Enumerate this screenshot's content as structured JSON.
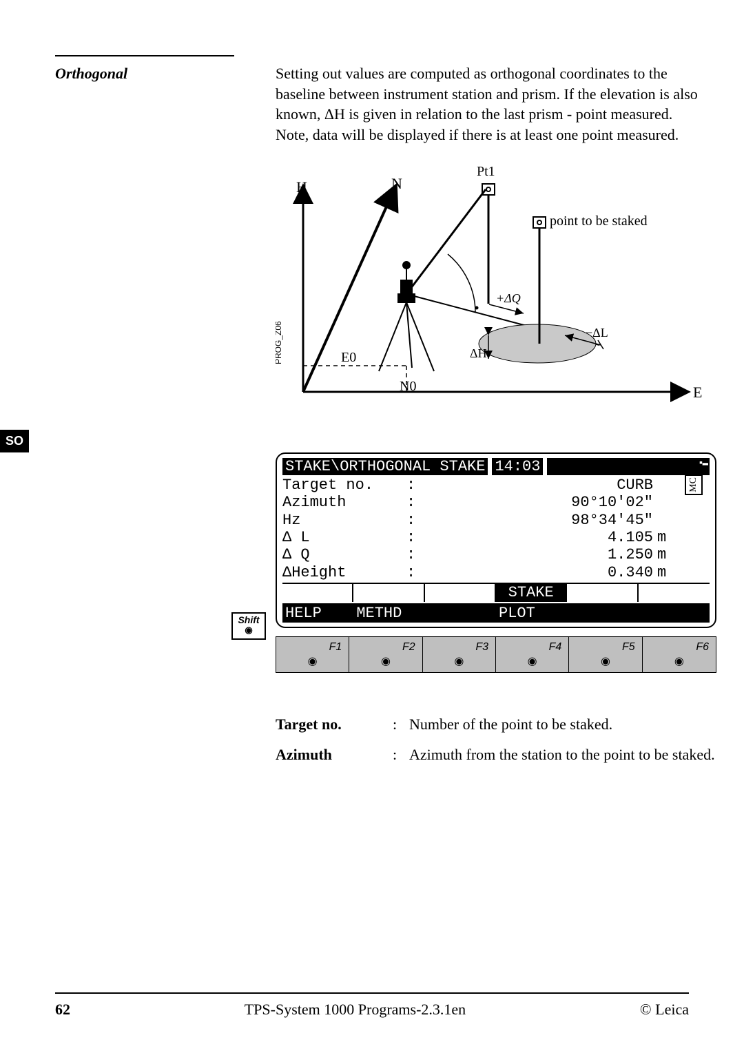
{
  "section_title": "Orthogonal",
  "body_text_1": "Setting out values are computed as orthogonal coordinates to the baseline between instrument station and prism. If the elevation is also known, ΔH is given in relation to the last prism - point measured.",
  "body_text_2": "Note, data will be displayed if there is at least one point measured.",
  "side_tab": "SO",
  "diagram": {
    "labels": {
      "H": "H",
      "N": "N",
      "Pt1": "Pt1",
      "E": "E",
      "E0": "E0",
      "N0": "N0",
      "dQ": "+ΔQ",
      "dL": "−ΔL",
      "dH": "ΔH",
      "pts": "point to be staked",
      "side_code": "PROG_Z06"
    }
  },
  "screen": {
    "title_left": "STAKE\\ORTHOGONAL STAKE",
    "time": "14:03",
    "battery_glyph": "▪▬",
    "mc": "MC",
    "rows": [
      {
        "label": "Target no.",
        "value": "CURB",
        "unit": ""
      },
      {
        "label": "Azimuth",
        "value": "90°10'02\"",
        "unit": ""
      },
      {
        "label": "Hz",
        "value": "98°34'45\"",
        "unit": ""
      },
      {
        "label": "Δ L",
        "value": "4.105",
        "unit": "m"
      },
      {
        "label": "Δ Q",
        "value": "1.250",
        "unit": "m"
      },
      {
        "label": "ΔHeight",
        "value": "0.340",
        "unit": "m"
      }
    ],
    "soft1": [
      "",
      "",
      "",
      "STAKE",
      "",
      ""
    ],
    "soft2": [
      "HELP",
      "METHD",
      "",
      "PLOT",
      "",
      ""
    ],
    "fkeys": [
      "F1",
      "F2",
      "F3",
      "F4",
      "F5",
      "F6"
    ]
  },
  "shift_label": "Shift",
  "definitions": [
    {
      "term": "Target no.",
      "desc": "Number of the point to be staked."
    },
    {
      "term": "Azimuth",
      "desc": "Azimuth from the station to the point to be staked."
    }
  ],
  "footer": {
    "page": "62",
    "center": "TPS-System 1000 Programs-2.3.1en",
    "right": "© Leica"
  }
}
